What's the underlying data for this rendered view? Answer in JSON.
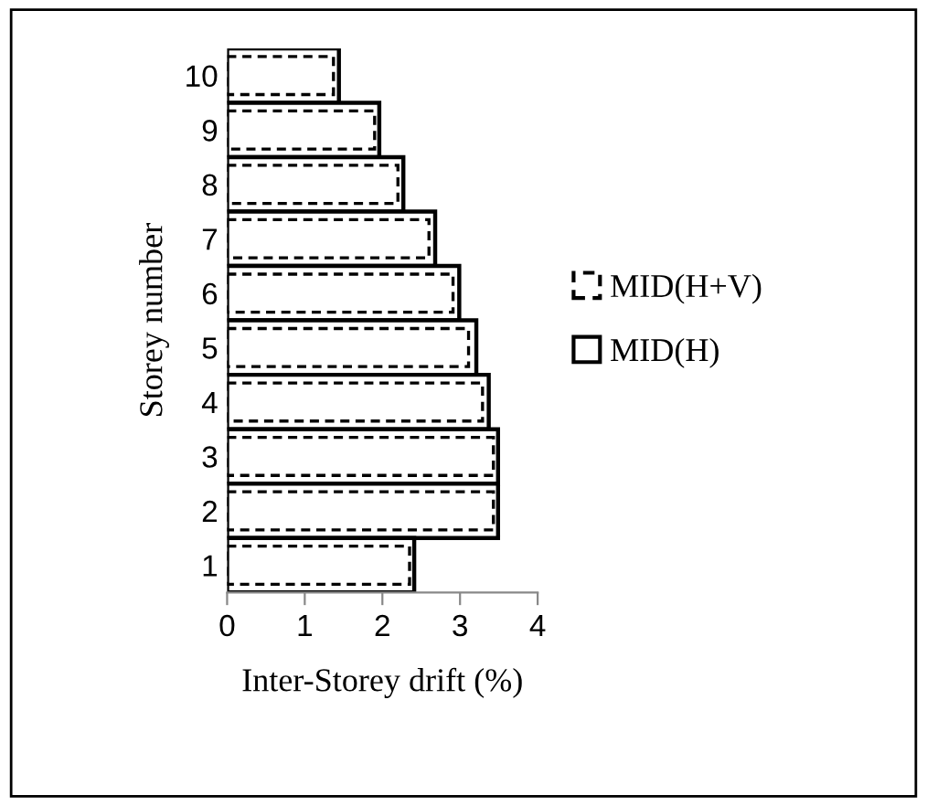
{
  "chart_data": {
    "type": "bar",
    "orientation": "horizontal",
    "xlabel": "Inter-Storey drift (%)",
    "ylabel": "Storey number",
    "categories": [
      "10",
      "9",
      "8",
      "7",
      "6",
      "5",
      "4",
      "3",
      "2",
      "1"
    ],
    "series": [
      {
        "name": "MID(H+V)",
        "color": "#000000",
        "line_style": "dashed",
        "values": [
          1.37,
          1.9,
          2.2,
          2.6,
          2.91,
          3.11,
          3.29,
          3.43,
          3.43,
          2.35
        ]
      },
      {
        "name": "MID(H)",
        "color": "#000000",
        "line_style": "solid",
        "values": [
          1.44,
          1.96,
          2.27,
          2.68,
          2.99,
          3.21,
          3.37,
          3.49,
          3.49,
          2.41
        ]
      }
    ],
    "xlim": [
      0,
      4
    ],
    "xticks": [
      0,
      1,
      2,
      3,
      4
    ],
    "grid": false,
    "legend": "right"
  }
}
